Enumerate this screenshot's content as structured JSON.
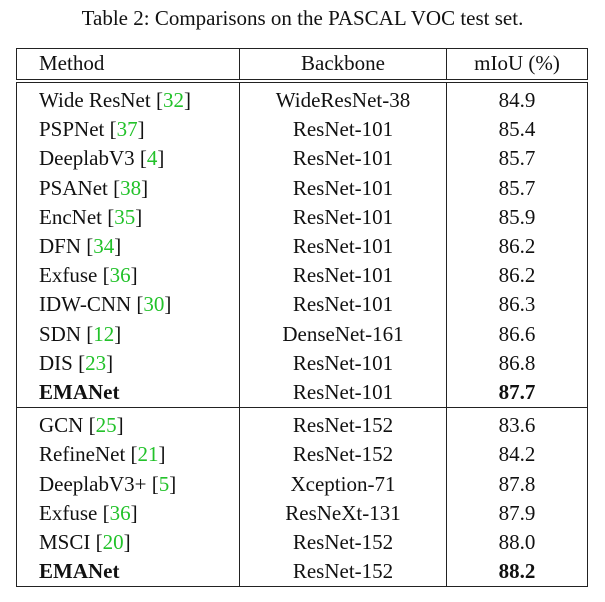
{
  "caption": "Table 2: Comparisons on the PASCAL VOC test set.",
  "table": {
    "headers": [
      "Method",
      "Backbone",
      "mIoU (%)"
    ],
    "sections": [
      [
        {
          "method": "Wide ResNet",
          "cite": "[32]",
          "backbone": "WideResNet-38",
          "miou": "84.9"
        },
        {
          "method": "PSPNet",
          "cite": "[37]",
          "backbone": "ResNet-101",
          "miou": "85.4"
        },
        {
          "method": "DeeplabV3",
          "cite": "[4]",
          "backbone": "ResNet-101",
          "miou": "85.7"
        },
        {
          "method": "PSANet",
          "cite": "[38]",
          "backbone": "ResNet-101",
          "miou": "85.7"
        },
        {
          "method": "EncNet",
          "cite": "[35]",
          "backbone": "ResNet-101",
          "miou": "85.9"
        },
        {
          "method": "DFN",
          "cite": "[34]",
          "backbone": "ResNet-101",
          "miou": "86.2"
        },
        {
          "method": "Exfuse",
          "cite": "[36]",
          "backbone": "ResNet-101",
          "miou": "86.2"
        },
        {
          "method": "IDW-CNN",
          "cite": "[30]",
          "backbone": "ResNet-101",
          "miou": "86.3"
        },
        {
          "method": "SDN",
          "cite": "[12]",
          "backbone": "DenseNet-161",
          "miou": "86.6"
        },
        {
          "method": "DIS",
          "cite": "[23]",
          "backbone": "ResNet-101",
          "miou": "86.8"
        },
        {
          "method": "EMANet",
          "backbone": "ResNet-101",
          "miou": "87.7",
          "bold": true
        }
      ],
      [
        {
          "method": "GCN",
          "cite": "[25]",
          "backbone": "ResNet-152",
          "miou": "83.6"
        },
        {
          "method": "RefineNet",
          "cite": "[21]",
          "backbone": "ResNet-152",
          "miou": "84.2"
        },
        {
          "method": "DeeplabV3+",
          "cite": "[5]",
          "backbone": "Xception-71",
          "miou": "87.8"
        },
        {
          "method": "Exfuse",
          "cite": "[36]",
          "backbone": "ResNeXt-131",
          "miou": "87.9"
        },
        {
          "method": "MSCI",
          "cite": "[20]",
          "backbone": "ResNet-152",
          "miou": "88.0"
        },
        {
          "method": "EMANet",
          "backbone": "ResNet-152",
          "miou": "88.2",
          "bold": true
        }
      ]
    ]
  }
}
